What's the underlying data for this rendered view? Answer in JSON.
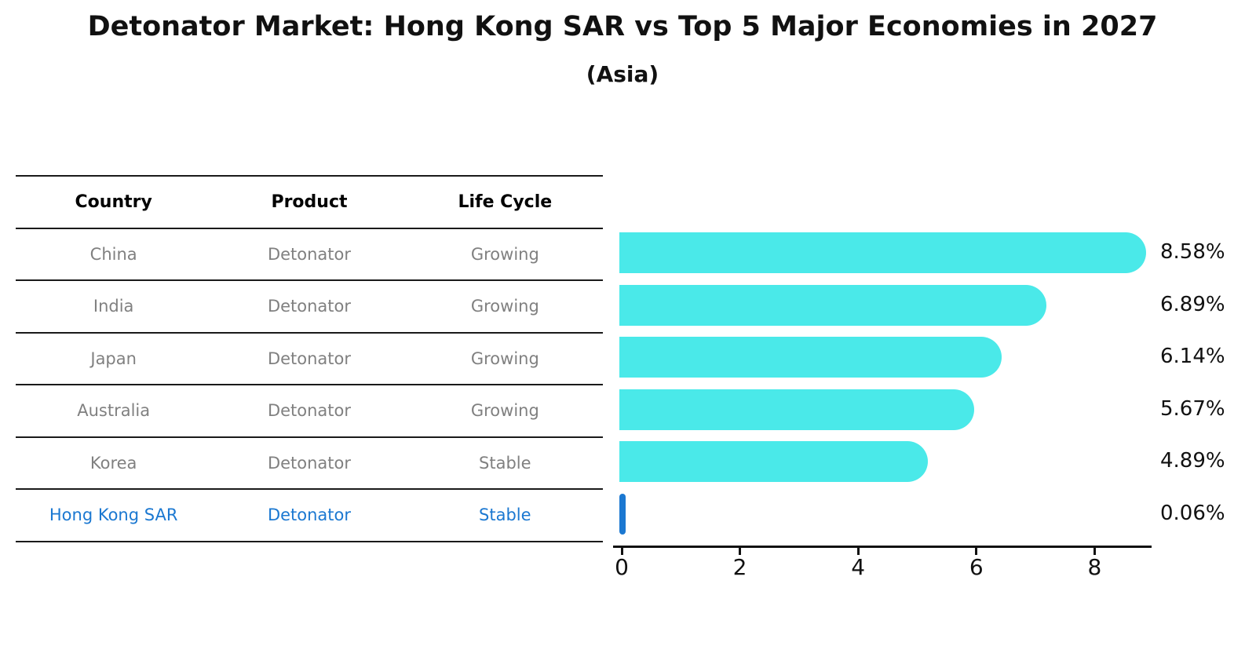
{
  "title": "Detonator Market: Hong Kong SAR vs Top 5 Major Economies in 2027",
  "subtitle": "(Asia)",
  "table": {
    "headers": [
      "Country",
      "Product",
      "Life Cycle"
    ],
    "rows": [
      {
        "country": "China",
        "product": "Detonator",
        "life_cycle": "Growing",
        "highlight": false
      },
      {
        "country": "India",
        "product": "Detonator",
        "life_cycle": "Growing",
        "highlight": false
      },
      {
        "country": "Japan",
        "product": "Detonator",
        "life_cycle": "Growing",
        "highlight": false
      },
      {
        "country": "Australia",
        "product": "Detonator",
        "life_cycle": "Growing",
        "highlight": false
      },
      {
        "country": "Korea",
        "product": "Detonator",
        "life_cycle": "Stable",
        "highlight": false
      },
      {
        "country": "Hong Kong SAR",
        "product": "Detonator",
        "life_cycle": "Stable",
        "highlight": true
      }
    ]
  },
  "chart_data": {
    "type": "bar",
    "orientation": "horizontal",
    "categories": [
      "China",
      "India",
      "Japan",
      "Australia",
      "Korea",
      "Hong Kong SAR"
    ],
    "values": [
      8.58,
      6.89,
      6.14,
      5.67,
      4.89,
      0.06
    ],
    "value_labels": [
      "8.58%",
      "6.89%",
      "6.14%",
      "5.67%",
      "4.89%",
      "0.06%"
    ],
    "xticks": [
      0,
      2,
      4,
      6,
      8
    ],
    "xlim": [
      0,
      8.97
    ],
    "grid": false,
    "legend": "none",
    "bar_color": "#4ae9e9",
    "highlight_color": "#1b78d1",
    "highlight_index": 5
  },
  "colors": {
    "background": "#ffffff",
    "table_text": "#808080",
    "header_text": "#000000",
    "highlight_text": "#1b78d1",
    "axis": "#111111"
  }
}
